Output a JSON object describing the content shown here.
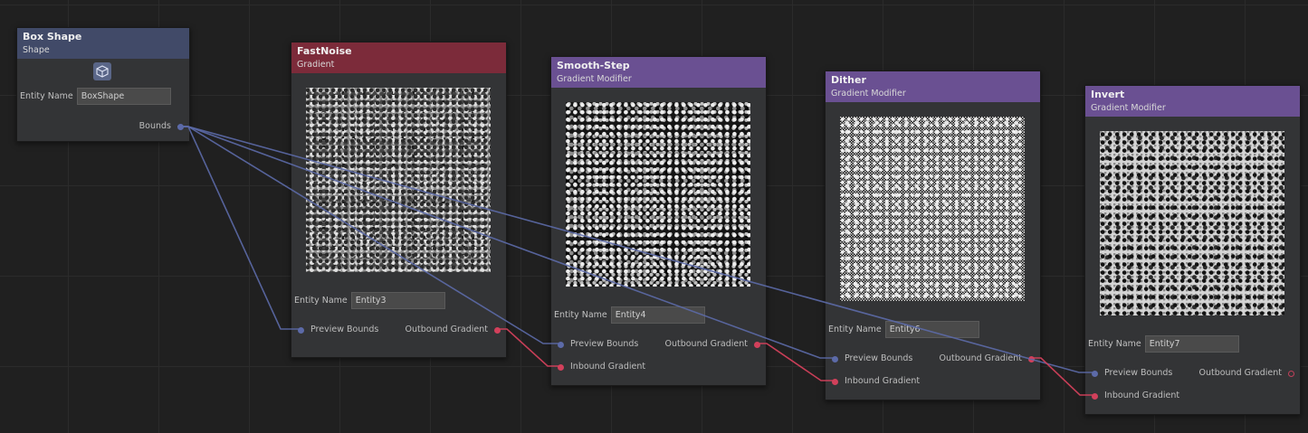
{
  "colors": {
    "background": "#202020",
    "node_body": "#333436",
    "shape_header": "#414a68",
    "gradient_header": "#7c2b3a",
    "modifier_header": "#6a5092",
    "bounds_slot": "#5c6aa8",
    "gradient_slot": "#d2405b"
  },
  "nodes": {
    "box_shape": {
      "title": "Box Shape",
      "subtitle": "Shape",
      "icon": "box-shape-icon",
      "entity_label": "Entity Name",
      "entity_value": "BoxShape",
      "bounds_label": "Bounds"
    },
    "fast_noise": {
      "title": "FastNoise",
      "subtitle": "Gradient",
      "entity_label": "Entity Name",
      "entity_value": "Entity3",
      "preview_bounds": "Preview Bounds",
      "outbound": "Outbound Gradient"
    },
    "smooth_step": {
      "title": "Smooth-Step",
      "subtitle": "Gradient Modifier",
      "entity_label": "Entity Name",
      "entity_value": "Entity4",
      "preview_bounds": "Preview Bounds",
      "outbound": "Outbound Gradient",
      "inbound": "Inbound Gradient"
    },
    "dither": {
      "title": "Dither",
      "subtitle": "Gradient Modifier",
      "entity_label": "Entity Name",
      "entity_value": "Entity6",
      "preview_bounds": "Preview Bounds",
      "outbound": "Outbound Gradient",
      "inbound": "Inbound Gradient"
    },
    "invert": {
      "title": "Invert",
      "subtitle": "Gradient Modifier",
      "entity_label": "Entity Name",
      "entity_value": "Entity7",
      "preview_bounds": "Preview Bounds",
      "outbound": "Outbound Gradient",
      "inbound": "Inbound Gradient"
    }
  }
}
